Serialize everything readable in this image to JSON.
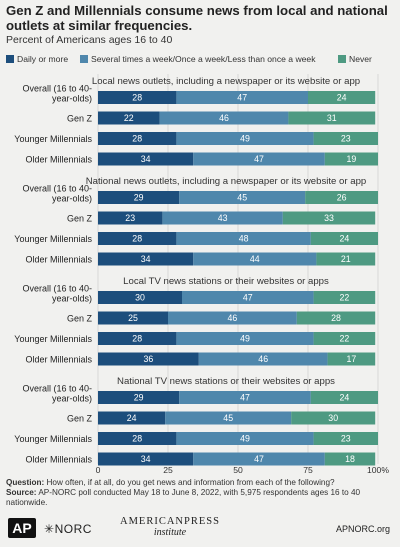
{
  "title": "Gen Z and Millennials consume news from local and national outlets at similar frequencies.",
  "subtitle": "Percent of Americans ages 16 to 40",
  "colors": {
    "daily": "#1d4e7c",
    "weekly": "#4f87ac",
    "never": "#4e9a82",
    "background": "#f1f1ef"
  },
  "chart_data": {
    "type": "bar",
    "orientation": "horizontal",
    "stacked": true,
    "xlim": [
      0,
      100
    ],
    "x_ticks": [
      "0",
      "25",
      "50",
      "75",
      "100%"
    ],
    "legend": [
      {
        "key": "daily",
        "label": "Daily or more"
      },
      {
        "key": "weekly",
        "label": "Several times a week/Once a week/Less than once a week"
      },
      {
        "key": "never",
        "label": "Never"
      }
    ],
    "legend_position": "top",
    "panels": [
      {
        "title": "Local news outlets, including a newspaper or its website or app",
        "rows": [
          {
            "label": [
              "Overall (16 to 40-",
              "year-olds)"
            ],
            "values": [
              28,
              47,
              24
            ]
          },
          {
            "label": [
              "Gen Z"
            ],
            "values": [
              22,
              46,
              31
            ]
          },
          {
            "label": [
              "Younger Millennials"
            ],
            "values": [
              28,
              49,
              23
            ]
          },
          {
            "label": [
              "Older Millennials"
            ],
            "values": [
              34,
              47,
              19
            ]
          }
        ]
      },
      {
        "title": "National news outlets, including a newspaper or its website or app",
        "rows": [
          {
            "label": [
              "Overall (16 to 40-",
              "year-olds)"
            ],
            "values": [
              29,
              45,
              26
            ]
          },
          {
            "label": [
              "Gen Z"
            ],
            "values": [
              23,
              43,
              33
            ]
          },
          {
            "label": [
              "Younger Millennials"
            ],
            "values": [
              28,
              48,
              24
            ]
          },
          {
            "label": [
              "Older Millennials"
            ],
            "values": [
              34,
              44,
              21
            ]
          }
        ]
      },
      {
        "title": "Local TV news stations or their websites or apps",
        "rows": [
          {
            "label": [
              "Overall (16 to 40-",
              "year-olds)"
            ],
            "values": [
              30,
              47,
              22
            ]
          },
          {
            "label": [
              "Gen Z"
            ],
            "values": [
              25,
              46,
              28
            ]
          },
          {
            "label": [
              "Younger Millennials"
            ],
            "values": [
              28,
              49,
              22
            ]
          },
          {
            "label": [
              "Older Millennials"
            ],
            "values": [
              36,
              46,
              17
            ]
          }
        ]
      },
      {
        "title": "National TV news stations or their websites or apps",
        "rows": [
          {
            "label": [
              "Overall (16 to 40-",
              "year-olds)"
            ],
            "values": [
              29,
              47,
              24
            ]
          },
          {
            "label": [
              "Gen Z"
            ],
            "values": [
              24,
              45,
              30
            ]
          },
          {
            "label": [
              "Younger Millennials"
            ],
            "values": [
              28,
              49,
              23
            ]
          },
          {
            "label": [
              "Older Millennials"
            ],
            "values": [
              34,
              47,
              18
            ]
          }
        ]
      }
    ]
  },
  "footer": {
    "question_label": "Question:",
    "question_text": "How often, if at all, do you get news and information from each of the following?",
    "source_label": "Source:",
    "source_text": "AP-NORC poll conducted May 18 to June 8, 2022, with 5,975 respondents ages 16 to 40 nationwide."
  },
  "logos": {
    "ap": "AP",
    "norc": "NORC",
    "api_main": "AMERICANPRESS",
    "api_sub": "institute",
    "site": "APNORC.org"
  }
}
